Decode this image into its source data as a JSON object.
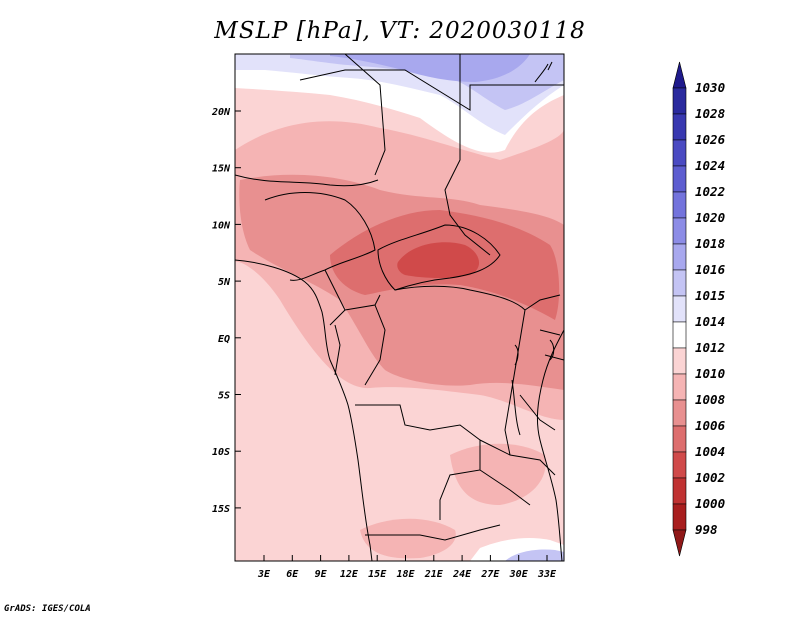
{
  "title": "MSLP [hPa], VT: 2020030118",
  "credit": "GrADS: IGES/COLA",
  "map": {
    "lat_labels": [
      "20N",
      "15N",
      "10N",
      "5N",
      "EQ",
      "5S",
      "10S",
      "15S"
    ],
    "lon_labels": [
      "3E",
      "6E",
      "9E",
      "12E",
      "15E",
      "18E",
      "21E",
      "24E",
      "27E",
      "30E",
      "33E"
    ]
  },
  "colorbar": {
    "labels": [
      "1030",
      "1028",
      "1026",
      "1024",
      "1022",
      "1020",
      "1018",
      "1016",
      "1015",
      "1014",
      "1012",
      "1010",
      "1008",
      "1006",
      "1004",
      "1002",
      "1000",
      "998"
    ],
    "colors_top_to_bottom": [
      "#1f1a8c",
      "#2a2a9e",
      "#3838b0",
      "#4a4ac2",
      "#5d5dd0",
      "#7373dc",
      "#8c8ce6",
      "#a8a8ee",
      "#c4c4f4",
      "#e2e2fa",
      "#ffffff",
      "#fbd4d4",
      "#f5b4b4",
      "#e89090",
      "#dd6e6e",
      "#d04a4a",
      "#c03232",
      "#a81e1e",
      "#901818"
    ]
  }
}
